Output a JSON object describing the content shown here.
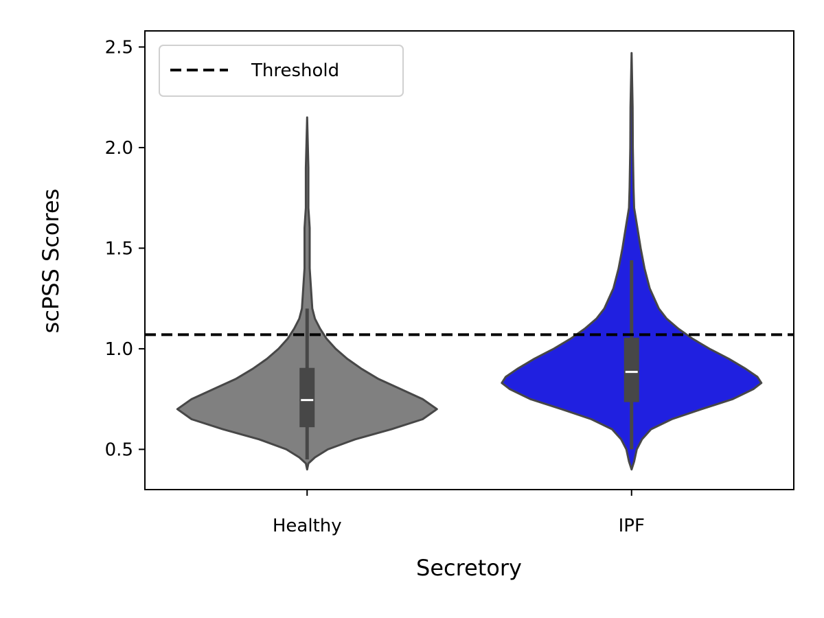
{
  "chart_data": {
    "type": "violin",
    "xlabel": "Secretory",
    "ylabel": "scPSS Scores",
    "ylim": [
      0.3,
      2.58
    ],
    "yticks": [
      0.5,
      1.0,
      1.5,
      2.0,
      2.5
    ],
    "ytick_labels": [
      "0.5",
      "1.0",
      "1.5",
      "2.0",
      "2.5"
    ],
    "grid": false,
    "legend": {
      "placement": "top-left",
      "entries": [
        "Threshold"
      ]
    },
    "threshold": {
      "label": "Threshold",
      "value": 1.07,
      "color": "#000000",
      "style": "dashed"
    },
    "categories": [
      "Healthy",
      "IPF"
    ],
    "groups": [
      {
        "name": "Healthy",
        "color": "#808080",
        "min": 0.4,
        "max": 2.15,
        "q1": 0.61,
        "median": 0.745,
        "q3": 0.905,
        "whisker_low": 0.45,
        "whisker_high": 1.2,
        "density": [
          [
            0.4,
            0.0
          ],
          [
            0.43,
            0.01
          ],
          [
            0.46,
            0.06
          ],
          [
            0.5,
            0.16
          ],
          [
            0.55,
            0.37
          ],
          [
            0.6,
            0.65
          ],
          [
            0.65,
            0.89
          ],
          [
            0.7,
            1.0
          ],
          [
            0.75,
            0.89
          ],
          [
            0.8,
            0.72
          ],
          [
            0.85,
            0.55
          ],
          [
            0.9,
            0.42
          ],
          [
            0.95,
            0.31
          ],
          [
            1.0,
            0.22
          ],
          [
            1.05,
            0.15
          ],
          [
            1.1,
            0.1
          ],
          [
            1.15,
            0.06
          ],
          [
            1.2,
            0.04
          ],
          [
            1.3,
            0.03
          ],
          [
            1.4,
            0.02
          ],
          [
            1.5,
            0.02
          ],
          [
            1.6,
            0.02
          ],
          [
            1.65,
            0.015
          ],
          [
            1.7,
            0.01
          ],
          [
            1.9,
            0.01
          ],
          [
            2.15,
            0.0
          ]
        ]
      },
      {
        "name": "IPF",
        "color": "#2020e0",
        "min": 0.4,
        "max": 2.47,
        "q1": 0.735,
        "median": 0.885,
        "q3": 1.055,
        "whisker_low": 0.5,
        "whisker_high": 1.44,
        "density": [
          [
            0.4,
            0.0
          ],
          [
            0.44,
            0.02
          ],
          [
            0.5,
            0.04
          ],
          [
            0.55,
            0.08
          ],
          [
            0.6,
            0.15
          ],
          [
            0.65,
            0.31
          ],
          [
            0.7,
            0.54
          ],
          [
            0.75,
            0.78
          ],
          [
            0.8,
            0.94
          ],
          [
            0.83,
            1.0
          ],
          [
            0.86,
            0.97
          ],
          [
            0.9,
            0.88
          ],
          [
            0.95,
            0.75
          ],
          [
            1.0,
            0.6
          ],
          [
            1.05,
            0.47
          ],
          [
            1.1,
            0.36
          ],
          [
            1.15,
            0.27
          ],
          [
            1.2,
            0.21
          ],
          [
            1.3,
            0.14
          ],
          [
            1.4,
            0.1
          ],
          [
            1.5,
            0.07
          ],
          [
            1.6,
            0.045
          ],
          [
            1.7,
            0.02
          ],
          [
            1.8,
            0.015
          ],
          [
            2.0,
            0.01
          ],
          [
            2.2,
            0.008
          ],
          [
            2.47,
            0.0
          ]
        ]
      }
    ]
  }
}
